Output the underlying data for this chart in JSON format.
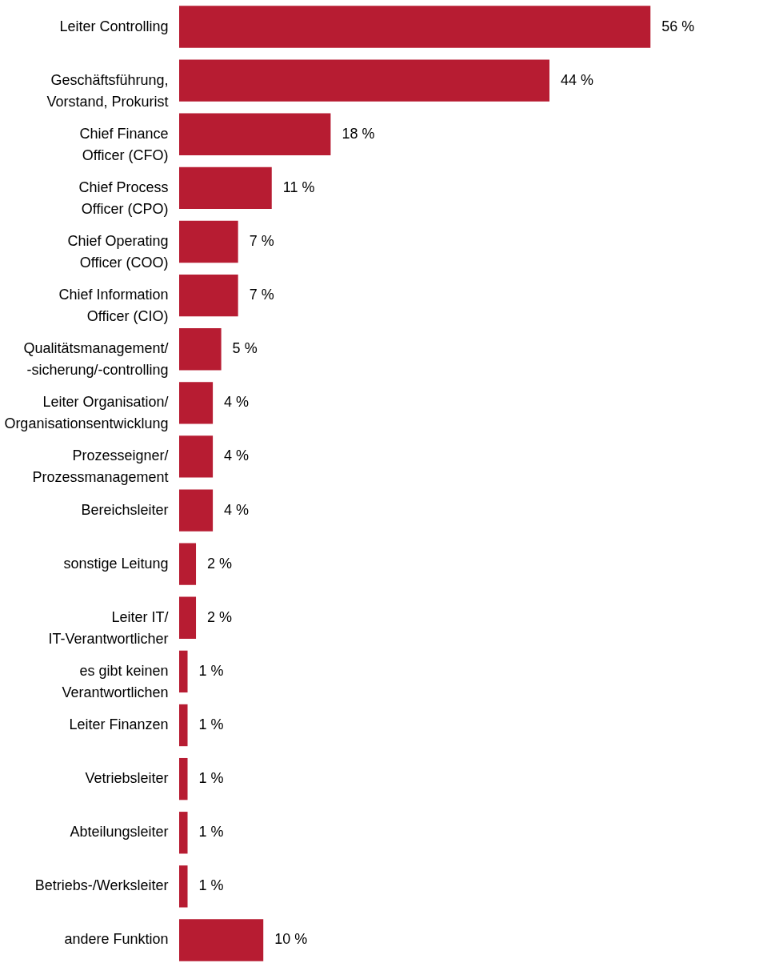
{
  "chart_data": {
    "type": "bar",
    "orientation": "horizontal",
    "categories": [
      "Leiter Controlling",
      "Geschäftsführung,\nVorstand, Prokurist",
      "Chief Finance\nOfficer (CFO)",
      "Chief Process\nOfficer (CPO)",
      "Chief Operating\nOfficer (COO)",
      "Chief Information\nOfficer (CIO)",
      "Qualitätsmanagement/\n-sicherung/-controlling",
      "Leiter Organisation/\nOrganisationsentwicklung",
      "Prozesseigner/\nProzessmanagement",
      "Bereichsleiter",
      "sonstige Leitung",
      "Leiter IT/\nIT-Verantwortlicher",
      "es gibt keinen\nVerantwortlichen",
      "Leiter Finanzen",
      "Vetriebsleiter",
      "Abteilungsleiter",
      "Betriebs-/Werksleiter",
      "andere Funktion"
    ],
    "values": [
      56,
      44,
      18,
      11,
      7,
      7,
      5,
      4,
      4,
      4,
      2,
      2,
      1,
      1,
      1,
      1,
      1,
      10
    ],
    "value_labels": [
      "56 %",
      "44 %",
      "18 %",
      "11 %",
      "7 %",
      "7 %",
      "5 %",
      "4 %",
      "4 %",
      "4 %",
      "2 %",
      "2 %",
      "1 %",
      "1 %",
      "1 %",
      "1 %",
      "1 %",
      "10 %"
    ],
    "color": "#b71c32",
    "grid": false,
    "tick_labels": "y"
  }
}
